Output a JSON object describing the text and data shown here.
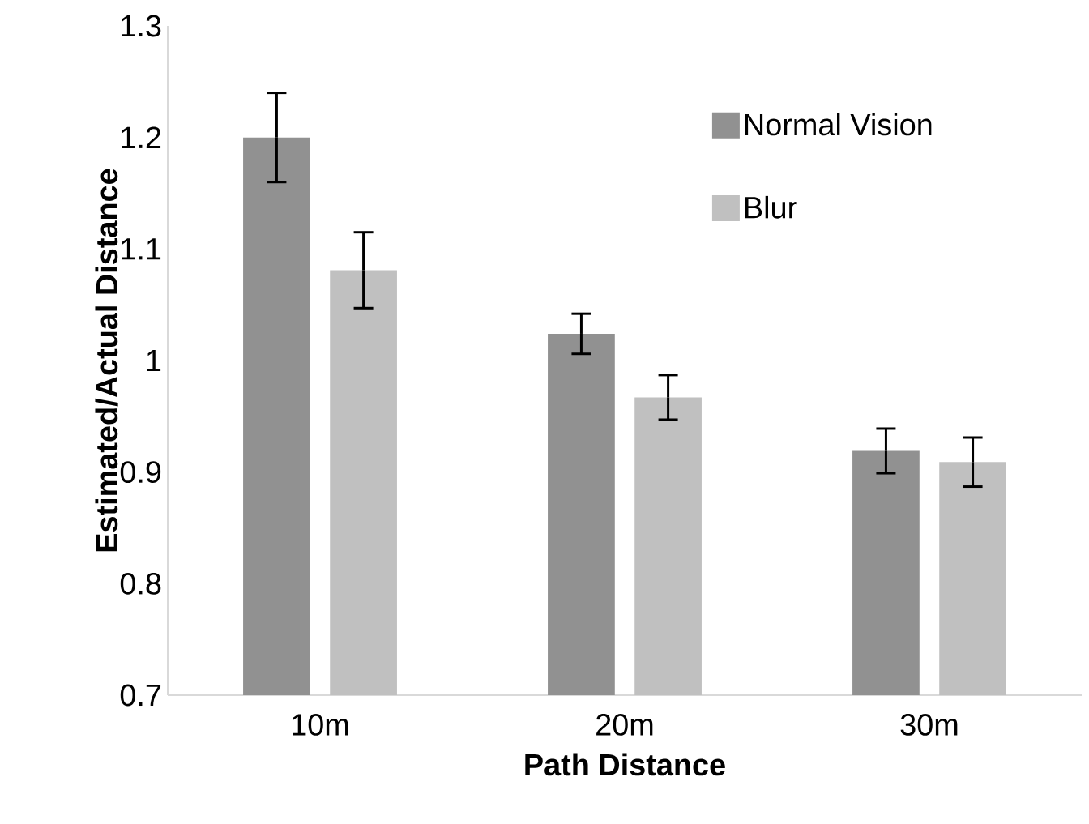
{
  "chart_data": {
    "type": "bar",
    "xlabel": "Path Distance",
    "ylabel": "Estimated/Actual Distance",
    "categories": [
      "10m",
      "20m",
      "30m"
    ],
    "series": [
      {
        "name": "Normal Vision",
        "color": "#919191",
        "values": [
          1.2,
          1.024,
          0.919
        ],
        "errors": [
          0.04,
          0.018,
          0.02
        ]
      },
      {
        "name": "Blur",
        "color": "#c0c0c0",
        "values": [
          1.081,
          0.967,
          0.909
        ],
        "errors": [
          0.034,
          0.02,
          0.022
        ]
      }
    ],
    "ylim": [
      0.7,
      1.3
    ],
    "yticks": [
      0.7,
      0.8,
      0.9,
      1,
      1.1,
      1.2,
      1.3
    ],
    "legend": "top right"
  }
}
